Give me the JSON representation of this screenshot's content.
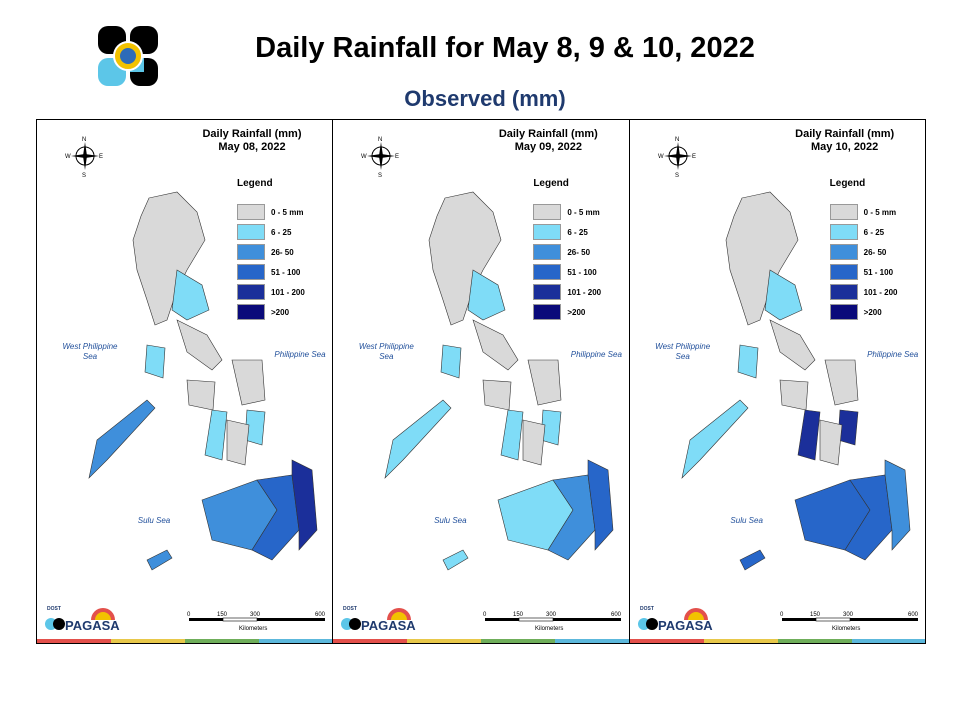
{
  "header": {
    "title": "Daily Rainfall for May 8, 9 & 10, 2022",
    "subtitle": "Observed (mm)"
  },
  "legend": {
    "title": "Legend",
    "items": [
      {
        "label": "0 - 5 mm",
        "color": "#d9d9d9"
      },
      {
        "label": "6 - 25",
        "color": "#7fdcf7"
      },
      {
        "label": "26- 50",
        "color": "#3f8fdb"
      },
      {
        "label": "51 - 100",
        "color": "#2766c9"
      },
      {
        "label": "101 - 200",
        "color": "#1b2f9a"
      },
      {
        "label": ">200",
        "color": "#0a0a7a"
      }
    ]
  },
  "seas": {
    "west": "West Philippine Sea",
    "philippine": "Philippine Sea",
    "sulu": "Sulu Sea"
  },
  "compass": {
    "n": "N",
    "s": "S",
    "e": "E",
    "w": "W"
  },
  "scale": {
    "ticks": [
      "0",
      "150",
      "300",
      "600"
    ],
    "unit": "Kilometers"
  },
  "footer": {
    "brand": "PAGASA",
    "dost": "DOST"
  },
  "panels": [
    {
      "heading": "Daily Rainfall (mm)",
      "date": "May 08, 2022"
    },
    {
      "heading": "Daily Rainfall (mm)",
      "date": "May 09, 2022"
    },
    {
      "heading": "Daily Rainfall (mm)",
      "date": "May 10, 2022"
    }
  ],
  "colors": {
    "land": "#d9d9d9",
    "border": "#333333",
    "strip": [
      "#e3504b",
      "#e8c84a",
      "#6fae5a",
      "#5cb8dc"
    ]
  }
}
